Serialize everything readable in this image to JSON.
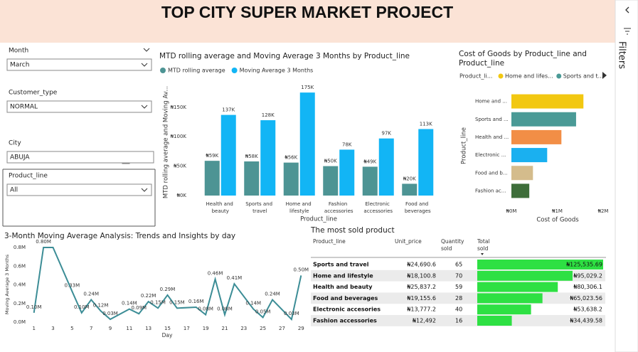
{
  "header": {
    "title": "TOP CITY SUPER MARKET PROJECT"
  },
  "filters_pane": {
    "label": "Filters"
  },
  "slicers": [
    {
      "label": "Month",
      "value": "March"
    },
    {
      "label": "Customer_type",
      "value": "NORMAL"
    },
    {
      "label": "City",
      "value": "ABUJA"
    },
    {
      "label": "Product_line",
      "value": "All"
    }
  ],
  "chart_data": [
    {
      "type": "bar",
      "title": "MTD rolling average and Moving Average 3 Months by Product_line",
      "xlabel": "Product_line",
      "ylabel": "MTD rolling average and Moving Av...",
      "categories": [
        "Health and beauty",
        "Sports and travel",
        "Home and lifestyle",
        "Fashion accessories",
        "Electronic accessories",
        "Food and beverages"
      ],
      "series": [
        {
          "name": "MTD rolling average",
          "color": "#4d9494",
          "values": [
            59,
            58,
            56,
            50,
            49,
            20
          ],
          "value_labels": [
            "₦59K",
            "₦58K",
            "₦56K",
            "₦50K",
            "₦49K",
            "₦20K"
          ]
        },
        {
          "name": "Moving Average 3 Months",
          "color": "#12b5f5",
          "values": [
            137,
            128,
            175,
            78,
            97,
            113
          ],
          "value_labels": [
            "137K",
            "128K",
            "175K",
            "78K",
            "97K",
            "113K"
          ]
        }
      ],
      "ylim": [
        0,
        180
      ],
      "yticks": [
        {
          "value": 0,
          "label": "₦0K"
        },
        {
          "value": 50,
          "label": "₦50K"
        },
        {
          "value": 100,
          "label": "₦100K"
        },
        {
          "value": 150,
          "label": "₦150K"
        }
      ]
    },
    {
      "type": "barh",
      "title": "Cost of Goods by Product_line and Product_line",
      "xlabel": "Cost of Goods",
      "ylabel": "Product_line",
      "legend": {
        "title": "Product_li...",
        "items": [
          "Home and lifes...",
          "Sports and t..."
        ]
      },
      "categories": [
        "Home and ...",
        "Sports and ...",
        "Health and ...",
        "Electronic ...",
        "Food and b...",
        "Fashion ac..."
      ],
      "values": [
        1.57,
        1.41,
        1.09,
        0.78,
        0.47,
        0.39
      ],
      "colors": [
        "#f2c811",
        "#4a9a96",
        "#f28e46",
        "#1ab0f0",
        "#d4bc8c",
        "#3e6e3a"
      ],
      "xlim": [
        0,
        2
      ],
      "xticks": [
        {
          "value": 0,
          "label": "₦0M"
        },
        {
          "value": 1,
          "label": "₦1M"
        },
        {
          "value": 2,
          "label": "₦2M"
        }
      ]
    },
    {
      "type": "line",
      "title": "3-Month Moving Average Analysis: Trends and Insights by day",
      "xlabel": "Day",
      "ylabel": "Moving Average 3 Months",
      "color": "#3c8d96",
      "x": [
        1,
        2,
        3,
        5,
        6,
        7,
        8,
        9,
        11,
        12,
        13,
        14,
        15,
        16,
        18,
        19,
        20,
        21,
        22,
        24,
        25,
        26,
        28,
        29
      ],
      "values": [
        0.1,
        0.8,
        0.8,
        0.33,
        0.1,
        0.24,
        0.12,
        0.03,
        0.14,
        0.09,
        0.22,
        0.15,
        0.29,
        0.15,
        0.16,
        0.08,
        0.46,
        0.08,
        0.41,
        0.14,
        0.05,
        0.24,
        0.03,
        0.5
      ],
      "value_labels": [
        "0.10M",
        "0.80M",
        null,
        "0.33M",
        "0.10M",
        "0.24M",
        "0.12M",
        "0.03M",
        "0.14M",
        "0.09M",
        "0.22M",
        "0.15M",
        "0.29M",
        "0.15M",
        "0.16M",
        "0.08M",
        "0.46M",
        "0.08M",
        "0.41M",
        "0.14M",
        "0.05M",
        "0.24M",
        "0.03M",
        "0.50M"
      ],
      "xlim": [
        0.5,
        29.5
      ],
      "xticks": [
        1,
        3,
        5,
        7,
        9,
        11,
        13,
        15,
        17,
        19,
        21,
        23,
        25,
        27,
        29
      ],
      "ylim": [
        0,
        0.8
      ],
      "yticks": [
        {
          "value": 0,
          "label": "0.0M"
        },
        {
          "value": 0.2,
          "label": "0.2M"
        },
        {
          "value": 0.4,
          "label": "0.4M"
        },
        {
          "value": 0.6,
          "label": "0.6M"
        },
        {
          "value": 0.8,
          "label": "0.8M"
        }
      ]
    }
  ],
  "table": {
    "title": "The most sold product",
    "columns": [
      "Product_line",
      "Unit_price",
      "Quantity sold",
      "Total sold"
    ],
    "rows": [
      [
        "Sports and travel",
        "₦24,690.6",
        "65",
        "₦125,535.69"
      ],
      [
        "Home and lifestyle",
        "₦18,100.8",
        "70",
        "₦95,029.2"
      ],
      [
        "Health and beauty",
        "₦25,837.2",
        "59",
        "₦80,306.1"
      ],
      [
        "Food and beverages",
        "₦19,155.6",
        "28",
        "₦65,023.56"
      ],
      [
        "Electronic accesories",
        "₦13,777.2",
        "40",
        "₦53,638.2"
      ],
      [
        "Fashion accessories",
        "₦12,492",
        "16",
        "₦34,439.58"
      ]
    ]
  }
}
